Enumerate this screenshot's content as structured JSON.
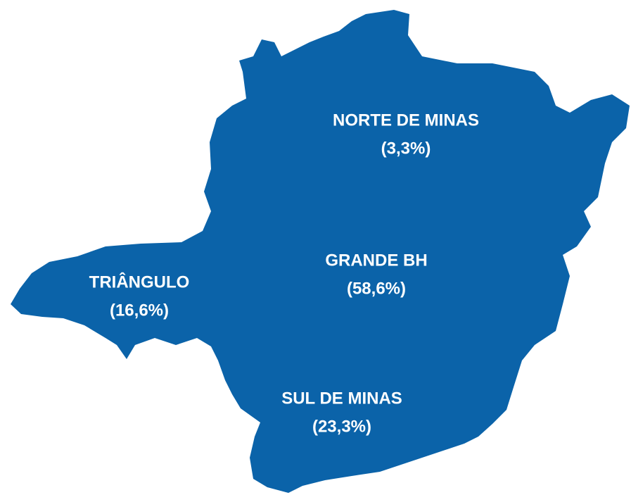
{
  "regions": [
    {
      "name": "NORTE DE MINAS",
      "share": "(3,3%)"
    },
    {
      "name": "GRANDE BH",
      "share": "(58,6%)"
    },
    {
      "name": "TRIÂNGULO",
      "share": "(16,6%)"
    },
    {
      "name": "SUL DE MINAS",
      "share": "(23,3%)"
    }
  ]
}
